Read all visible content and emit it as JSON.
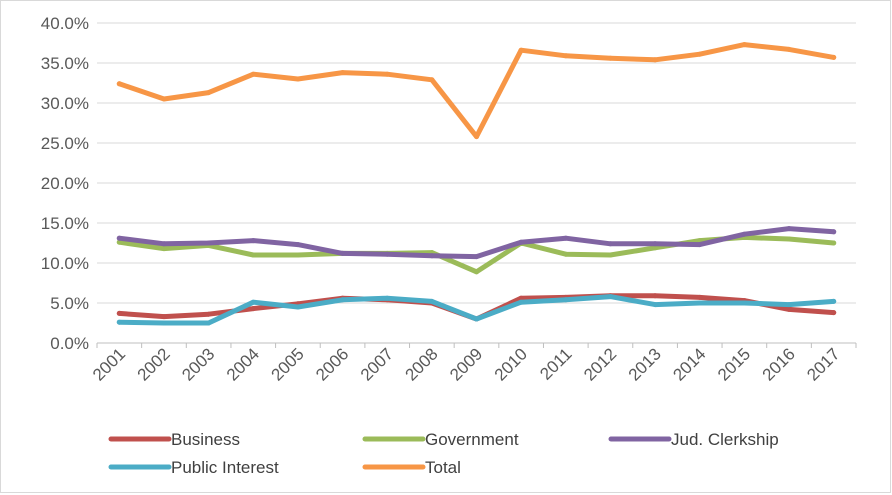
{
  "chart_data": {
    "type": "line",
    "title": "",
    "xlabel": "",
    "ylabel": "",
    "ylim": [
      0,
      40
    ],
    "y_ticks": [
      "0.0%",
      "5.0%",
      "10.0%",
      "15.0%",
      "20.0%",
      "25.0%",
      "30.0%",
      "35.0%",
      "40.0%"
    ],
    "categories": [
      "2001",
      "2002",
      "2003",
      "2004",
      "2005",
      "2006",
      "2007",
      "2008",
      "2009",
      "2010",
      "2011",
      "2012",
      "2013",
      "2014",
      "2015",
      "2016",
      "2017"
    ],
    "grid": "horizontal",
    "legend_position": "bottom",
    "series": [
      {
        "name": "Business",
        "color": "#c0504d",
        "values": [
          3.7,
          3.3,
          3.6,
          4.3,
          4.9,
          5.6,
          5.4,
          5.0,
          3.0,
          5.6,
          5.7,
          5.9,
          5.9,
          5.7,
          5.3,
          4.2,
          3.8
        ]
      },
      {
        "name": "Government",
        "color": "#9bbb59",
        "values": [
          12.6,
          11.8,
          12.2,
          11.0,
          11.0,
          11.2,
          11.2,
          11.3,
          8.9,
          12.5,
          11.1,
          11.0,
          11.9,
          12.8,
          13.2,
          13.0,
          12.5
        ]
      },
      {
        "name": "Jud. Clerkship",
        "color": "#8064a2",
        "values": [
          13.1,
          12.4,
          12.5,
          12.8,
          12.3,
          11.2,
          11.1,
          10.9,
          10.8,
          12.6,
          13.1,
          12.4,
          12.4,
          12.3,
          13.6,
          14.3,
          13.9
        ]
      },
      {
        "name": "Public Interest",
        "color": "#4bacc6",
        "values": [
          2.6,
          2.5,
          2.5,
          5.1,
          4.5,
          5.4,
          5.6,
          5.2,
          3.0,
          5.1,
          5.4,
          5.8,
          4.8,
          5.0,
          5.0,
          4.8,
          5.2
        ]
      },
      {
        "name": "Total",
        "color": "#f79646",
        "values": [
          32.4,
          30.5,
          31.3,
          33.6,
          33.0,
          33.8,
          33.6,
          32.9,
          25.8,
          36.6,
          35.9,
          35.6,
          35.4,
          36.1,
          37.3,
          36.7,
          35.7
        ]
      }
    ]
  }
}
